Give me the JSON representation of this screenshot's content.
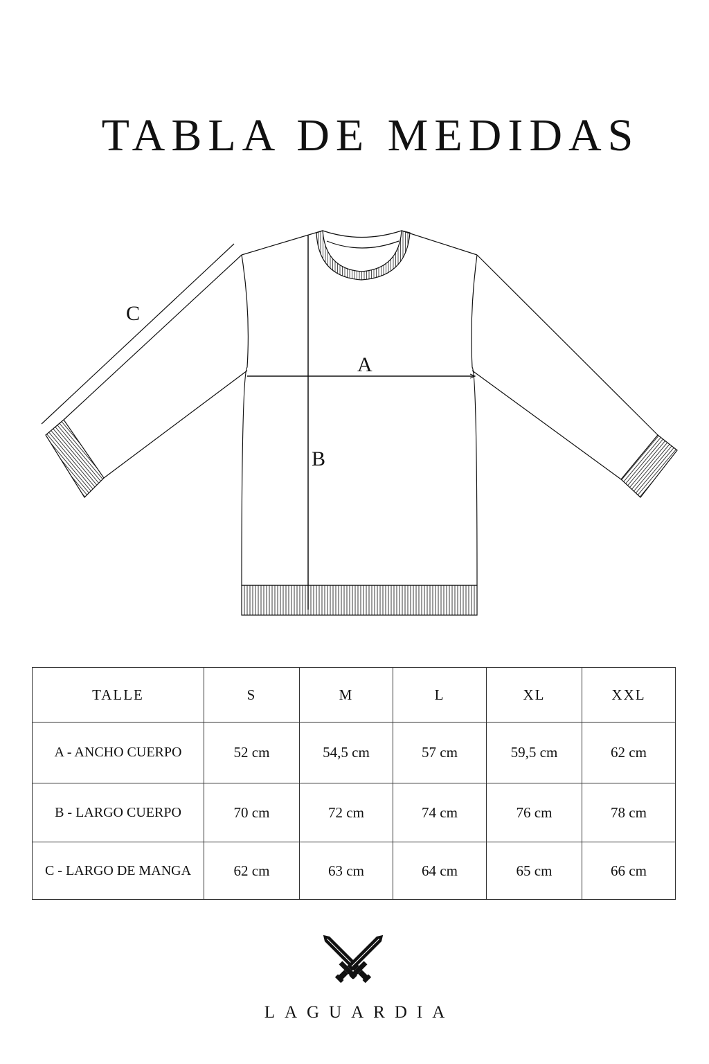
{
  "title": "TABLA DE MEDIDAS",
  "diagram": {
    "labels": {
      "a": "A",
      "b": "B",
      "c": "C"
    }
  },
  "size_table": {
    "headers": [
      "TALLE",
      "S",
      "M",
      "L",
      "XL",
      "XXL"
    ],
    "rows": [
      {
        "label": "A - ANCHO CUERPO",
        "values": [
          "52 cm",
          "54,5 cm",
          "57 cm",
          "59,5 cm",
          "62 cm"
        ]
      },
      {
        "label": "B - LARGO CUERPO",
        "values": [
          "70 cm",
          "72 cm",
          "74 cm",
          "76 cm",
          "78 cm"
        ]
      },
      {
        "label": "C - LARGO DE MANGA",
        "values": [
          "62 cm",
          "63 cm",
          "64 cm",
          "65 cm",
          "66 cm"
        ]
      }
    ]
  },
  "brand": {
    "name": "LAGUARDIA",
    "logo_icon": "crossed-swords-icon"
  }
}
